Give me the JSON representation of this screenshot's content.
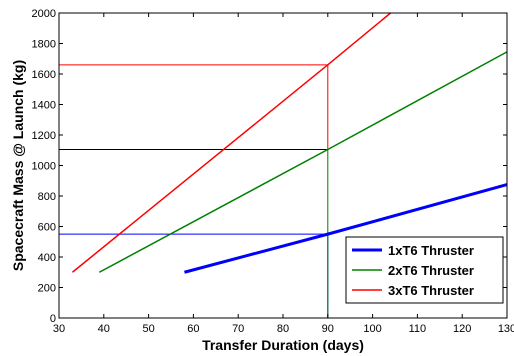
{
  "chart_data": {
    "type": "line",
    "xlabel": "Transfer Duration (days)",
    "ylabel": "Spacecraft Mass @ Launch (kg)",
    "xlim": [
      30,
      130
    ],
    "ylim": [
      0,
      2000
    ],
    "xticks": [
      30,
      40,
      50,
      60,
      70,
      80,
      90,
      100,
      110,
      120,
      130
    ],
    "yticks": [
      0,
      200,
      400,
      600,
      800,
      1000,
      1200,
      1400,
      1600,
      1800,
      2000
    ],
    "grid": false,
    "legend_position": "bottom-right",
    "series": [
      {
        "name": "1xT6 Thruster",
        "color": "#0000ff",
        "width": 3,
        "x": [
          58,
          90,
          130
        ],
        "y": [
          300,
          550,
          875
        ]
      },
      {
        "name": "2xT6 Thruster",
        "color": "#008000",
        "width": 1.5,
        "x": [
          39,
          90,
          130
        ],
        "y": [
          300,
          1105,
          1745
        ]
      },
      {
        "name": "3xT6 Thruster",
        "color": "#ff0000",
        "width": 1.5,
        "x": [
          33,
          90,
          104
        ],
        "y": [
          300,
          1660,
          2000
        ]
      }
    ],
    "reference_lines": [
      {
        "color": "#0000ff",
        "points": [
          [
            30,
            550
          ],
          [
            90,
            550
          ],
          [
            90,
            0
          ]
        ]
      },
      {
        "color": "#008000",
        "points": [
          [
            90,
            0
          ],
          [
            90,
            1105
          ]
        ]
      },
      {
        "color": "#000000",
        "points": [
          [
            30,
            1105
          ],
          [
            90,
            1105
          ]
        ]
      },
      {
        "color": "#ff0000",
        "points": [
          [
            30,
            1660
          ],
          [
            90,
            1660
          ],
          [
            90,
            1105
          ]
        ]
      }
    ]
  }
}
